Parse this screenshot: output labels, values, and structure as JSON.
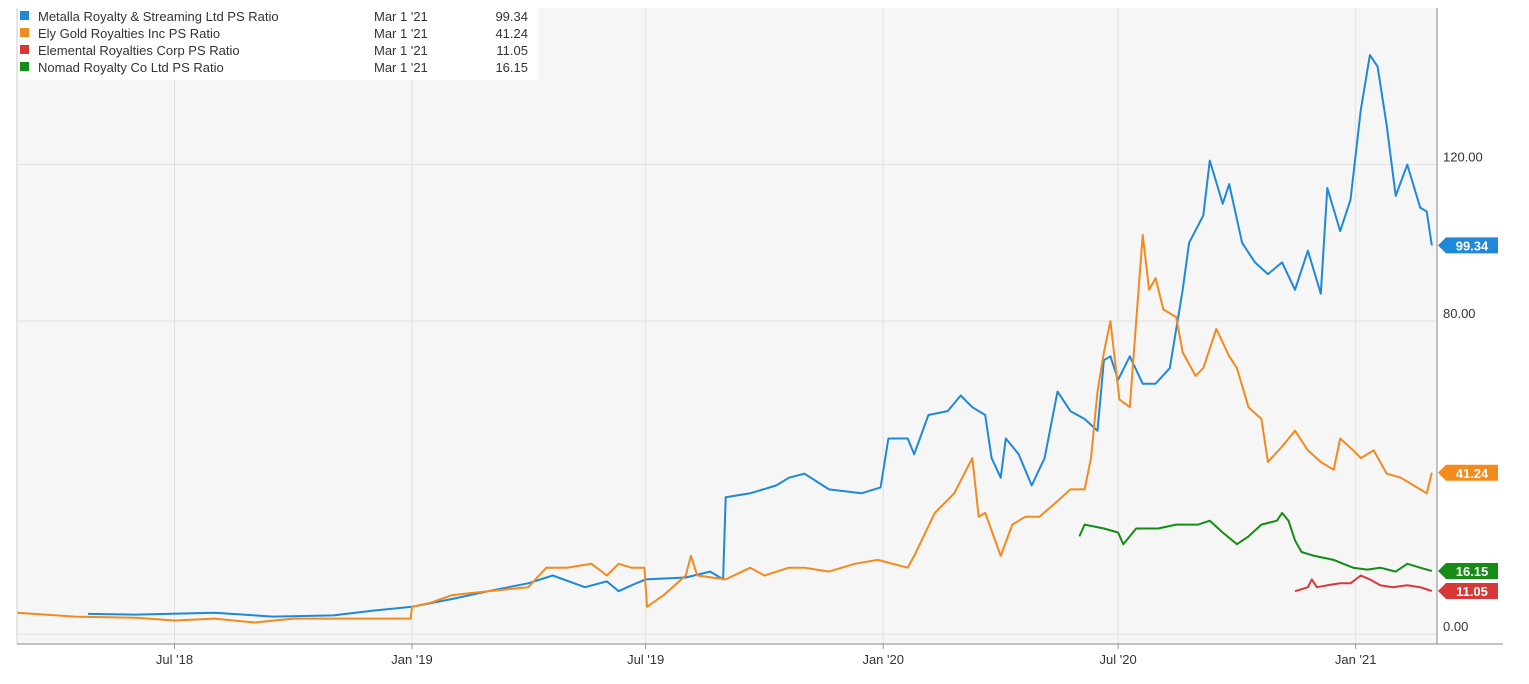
{
  "chart_data": {
    "type": "line",
    "title": "",
    "xlabel": "",
    "ylabel": "",
    "ylim": [
      -2.5,
      160
    ],
    "x_range": [
      "2018-03-01",
      "2021-03-05"
    ],
    "yticks": [
      "0.00",
      "80.00",
      "120.00"
    ],
    "xticks": [
      {
        "label": "Jul '18",
        "date": "2018-07-01"
      },
      {
        "label": "Jan '19",
        "date": "2019-01-01"
      },
      {
        "label": "Jul '19",
        "date": "2019-07-01"
      },
      {
        "label": "Jan '20",
        "date": "2020-01-01"
      },
      {
        "label": "Jul '20",
        "date": "2020-07-01"
      },
      {
        "label": "Jan '21",
        "date": "2021-01-01"
      }
    ],
    "grid": true,
    "legend_position": "top-left",
    "series": [
      {
        "name": "Metalla Royalty & Streaming Ltd PS Ratio",
        "color": "#1f88d9",
        "last_date": "Mar 1 '21",
        "last_value": "99.34",
        "badge": "99.34",
        "points": [
          [
            "2018-04-25",
            5.2
          ],
          [
            "2018-06-01",
            5.0
          ],
          [
            "2018-08-01",
            5.5
          ],
          [
            "2018-09-15",
            4.5
          ],
          [
            "2018-11-01",
            4.8
          ],
          [
            "2018-12-01",
            6.0
          ],
          [
            "2019-01-01",
            7.0
          ],
          [
            "2019-02-01",
            9.0
          ],
          [
            "2019-03-01",
            11.0
          ],
          [
            "2019-04-01",
            13.0
          ],
          [
            "2019-04-20",
            15.0
          ],
          [
            "2019-05-15",
            12.0
          ],
          [
            "2019-06-01",
            13.5
          ],
          [
            "2019-06-10",
            11.0
          ],
          [
            "2019-06-20",
            12.5
          ],
          [
            "2019-07-01",
            14.0
          ],
          [
            "2019-08-01",
            14.5
          ],
          [
            "2019-08-20",
            16.0
          ],
          [
            "2019-08-30",
            14.0
          ],
          [
            "2019-09-01",
            35.0
          ],
          [
            "2019-09-20",
            36.0
          ],
          [
            "2019-10-10",
            38.0
          ],
          [
            "2019-10-20",
            40.0
          ],
          [
            "2019-11-01",
            41.0
          ],
          [
            "2019-11-20",
            37.0
          ],
          [
            "2019-12-15",
            36.0
          ],
          [
            "2019-12-30",
            37.5
          ],
          [
            "2020-01-05",
            50.0
          ],
          [
            "2020-01-20",
            50.0
          ],
          [
            "2020-01-25",
            46.0
          ],
          [
            "2020-02-05",
            56.0
          ],
          [
            "2020-02-20",
            57.0
          ],
          [
            "2020-03-01",
            61.0
          ],
          [
            "2020-03-10",
            58.0
          ],
          [
            "2020-03-20",
            56.0
          ],
          [
            "2020-03-25",
            45.0
          ],
          [
            "2020-04-01",
            40.0
          ],
          [
            "2020-04-05",
            50.0
          ],
          [
            "2020-04-15",
            46.0
          ],
          [
            "2020-04-25",
            38.0
          ],
          [
            "2020-05-05",
            45.0
          ],
          [
            "2020-05-15",
            62.0
          ],
          [
            "2020-05-25",
            57.0
          ],
          [
            "2020-06-05",
            55.0
          ],
          [
            "2020-06-15",
            52.0
          ],
          [
            "2020-06-20",
            70.0
          ],
          [
            "2020-06-25",
            71.0
          ],
          [
            "2020-07-01",
            65.0
          ],
          [
            "2020-07-10",
            71.0
          ],
          [
            "2020-07-20",
            64.0
          ],
          [
            "2020-07-30",
            64.0
          ],
          [
            "2020-08-10",
            68.0
          ],
          [
            "2020-08-20",
            88.0
          ],
          [
            "2020-08-25",
            100.0
          ],
          [
            "2020-09-05",
            107.0
          ],
          [
            "2020-09-10",
            121.0
          ],
          [
            "2020-09-20",
            110.0
          ],
          [
            "2020-09-25",
            115.0
          ],
          [
            "2020-10-05",
            100.0
          ],
          [
            "2020-10-15",
            95.0
          ],
          [
            "2020-10-25",
            92.0
          ],
          [
            "2020-11-05",
            95.0
          ],
          [
            "2020-11-15",
            88.0
          ],
          [
            "2020-11-25",
            98.0
          ],
          [
            "2020-12-05",
            87.0
          ],
          [
            "2020-12-10",
            114.0
          ],
          [
            "2020-12-20",
            103.0
          ],
          [
            "2020-12-28",
            111.0
          ],
          [
            "2021-01-05",
            134.0
          ],
          [
            "2021-01-12",
            148.0
          ],
          [
            "2021-01-18",
            145.0
          ],
          [
            "2021-01-25",
            130.0
          ],
          [
            "2021-02-01",
            112.0
          ],
          [
            "2021-02-10",
            120.0
          ],
          [
            "2021-02-20",
            109.0
          ],
          [
            "2021-02-25",
            108.0
          ],
          [
            "2021-03-01",
            99.34
          ]
        ]
      },
      {
        "name": "Ely Gold Royalties Inc PS Ratio",
        "color": "#f28a1e",
        "last_date": "Mar 1 '21",
        "last_value": "41.24",
        "badge": "41.24",
        "points": [
          [
            "2018-03-01",
            5.5
          ],
          [
            "2018-04-15",
            4.5
          ],
          [
            "2018-06-01",
            4.2
          ],
          [
            "2018-07-01",
            3.5
          ],
          [
            "2018-08-01",
            4.0
          ],
          [
            "2018-09-01",
            3.0
          ],
          [
            "2018-10-01",
            4.0
          ],
          [
            "2018-11-01",
            4.0
          ],
          [
            "2018-12-01",
            4.0
          ],
          [
            "2018-12-31",
            4.0
          ],
          [
            "2019-01-01",
            7.0
          ],
          [
            "2019-01-15",
            8.0
          ],
          [
            "2019-02-01",
            10.0
          ],
          [
            "2019-03-01",
            11.0
          ],
          [
            "2019-04-01",
            12.0
          ],
          [
            "2019-04-15",
            17.0
          ],
          [
            "2019-05-01",
            17.0
          ],
          [
            "2019-05-20",
            18.0
          ],
          [
            "2019-06-01",
            15.0
          ],
          [
            "2019-06-10",
            18.0
          ],
          [
            "2019-06-20",
            17.0
          ],
          [
            "2019-06-30",
            17.0
          ],
          [
            "2019-07-02",
            7.0
          ],
          [
            "2019-07-15",
            10.0
          ],
          [
            "2019-08-01",
            15.0
          ],
          [
            "2019-08-05",
            20.0
          ],
          [
            "2019-08-10",
            15.0
          ],
          [
            "2019-09-01",
            14.0
          ],
          [
            "2019-09-20",
            17.0
          ],
          [
            "2019-10-01",
            15.0
          ],
          [
            "2019-10-20",
            17.0
          ],
          [
            "2019-11-01",
            17.0
          ],
          [
            "2019-11-20",
            16.0
          ],
          [
            "2019-12-10",
            18.0
          ],
          [
            "2019-12-28",
            19.0
          ],
          [
            "2020-01-20",
            17.0
          ],
          [
            "2020-01-25",
            20.0
          ],
          [
            "2020-02-10",
            31.0
          ],
          [
            "2020-02-25",
            36.0
          ],
          [
            "2020-03-10",
            45.0
          ],
          [
            "2020-03-15",
            30.0
          ],
          [
            "2020-03-20",
            31.0
          ],
          [
            "2020-04-01",
            20.0
          ],
          [
            "2020-04-10",
            28.0
          ],
          [
            "2020-04-20",
            30.0
          ],
          [
            "2020-05-01",
            30.0
          ],
          [
            "2020-05-15",
            34.0
          ],
          [
            "2020-05-25",
            37.0
          ],
          [
            "2020-06-05",
            37.0
          ],
          [
            "2020-06-10",
            45.0
          ],
          [
            "2020-06-15",
            62.0
          ],
          [
            "2020-06-20",
            72.0
          ],
          [
            "2020-06-25",
            80.0
          ],
          [
            "2020-07-02",
            60.0
          ],
          [
            "2020-07-10",
            58.0
          ],
          [
            "2020-07-15",
            80.0
          ],
          [
            "2020-07-20",
            102.0
          ],
          [
            "2020-07-25",
            88.0
          ],
          [
            "2020-07-30",
            91.0
          ],
          [
            "2020-08-05",
            83.0
          ],
          [
            "2020-08-15",
            81.0
          ],
          [
            "2020-08-20",
            72.0
          ],
          [
            "2020-08-30",
            66.0
          ],
          [
            "2020-09-05",
            68.0
          ],
          [
            "2020-09-15",
            78.0
          ],
          [
            "2020-09-25",
            71.0
          ],
          [
            "2020-10-01",
            68.0
          ],
          [
            "2020-10-10",
            58.0
          ],
          [
            "2020-10-20",
            55.0
          ],
          [
            "2020-10-25",
            44.0
          ],
          [
            "2020-11-05",
            48.0
          ],
          [
            "2020-11-15",
            52.0
          ],
          [
            "2020-11-25",
            47.0
          ],
          [
            "2020-12-05",
            44.0
          ],
          [
            "2020-12-15",
            42.0
          ],
          [
            "2020-12-20",
            50.0
          ],
          [
            "2020-12-30",
            47.0
          ],
          [
            "2021-01-05",
            45.0
          ],
          [
            "2021-01-15",
            47.0
          ],
          [
            "2021-01-25",
            41.0
          ],
          [
            "2021-02-05",
            40.0
          ],
          [
            "2021-02-15",
            38.0
          ],
          [
            "2021-02-25",
            36.0
          ],
          [
            "2021-03-01",
            41.24
          ]
        ]
      },
      {
        "name": "Elemental Royalties Corp PS Ratio",
        "color": "#d93838",
        "last_date": "Mar 1 '21",
        "last_value": "11.05",
        "badge": "11.05",
        "points": [
          [
            "2020-11-15",
            11.0
          ],
          [
            "2020-11-25",
            12.0
          ],
          [
            "2020-11-28",
            14.0
          ],
          [
            "2020-12-02",
            12.0
          ],
          [
            "2020-12-10",
            12.5
          ],
          [
            "2020-12-20",
            13.0
          ],
          [
            "2020-12-28",
            13.0
          ],
          [
            "2021-01-05",
            15.0
          ],
          [
            "2021-01-12",
            14.0
          ],
          [
            "2021-01-20",
            12.5
          ],
          [
            "2021-01-30",
            12.0
          ],
          [
            "2021-02-10",
            12.5
          ],
          [
            "2021-02-20",
            12.0
          ],
          [
            "2021-03-01",
            11.05
          ]
        ]
      },
      {
        "name": "Nomad Royalty Co Ltd PS Ratio",
        "color": "#168b16",
        "last_date": "Mar 1 '21",
        "last_value": "16.15",
        "badge": "16.15",
        "points": [
          [
            "2020-06-01",
            25.0
          ],
          [
            "2020-06-05",
            28.0
          ],
          [
            "2020-06-20",
            27.0
          ],
          [
            "2020-07-01",
            26.0
          ],
          [
            "2020-07-05",
            23.0
          ],
          [
            "2020-07-15",
            27.0
          ],
          [
            "2020-08-01",
            27.0
          ],
          [
            "2020-08-15",
            28.0
          ],
          [
            "2020-09-01",
            28.0
          ],
          [
            "2020-09-10",
            29.0
          ],
          [
            "2020-09-20",
            26.0
          ],
          [
            "2020-10-01",
            23.0
          ],
          [
            "2020-10-10",
            25.0
          ],
          [
            "2020-10-20",
            28.0
          ],
          [
            "2020-11-01",
            29.0
          ],
          [
            "2020-11-05",
            31.0
          ],
          [
            "2020-11-10",
            29.0
          ],
          [
            "2020-11-15",
            24.0
          ],
          [
            "2020-11-20",
            21.0
          ],
          [
            "2020-11-30",
            20.0
          ],
          [
            "2020-12-15",
            19.0
          ],
          [
            "2020-12-30",
            17.0
          ],
          [
            "2021-01-10",
            16.5
          ],
          [
            "2021-01-20",
            17.0
          ],
          [
            "2021-02-01",
            16.0
          ],
          [
            "2021-02-10",
            18.0
          ],
          [
            "2021-02-20",
            17.0
          ],
          [
            "2021-03-01",
            16.15
          ]
        ]
      }
    ]
  }
}
